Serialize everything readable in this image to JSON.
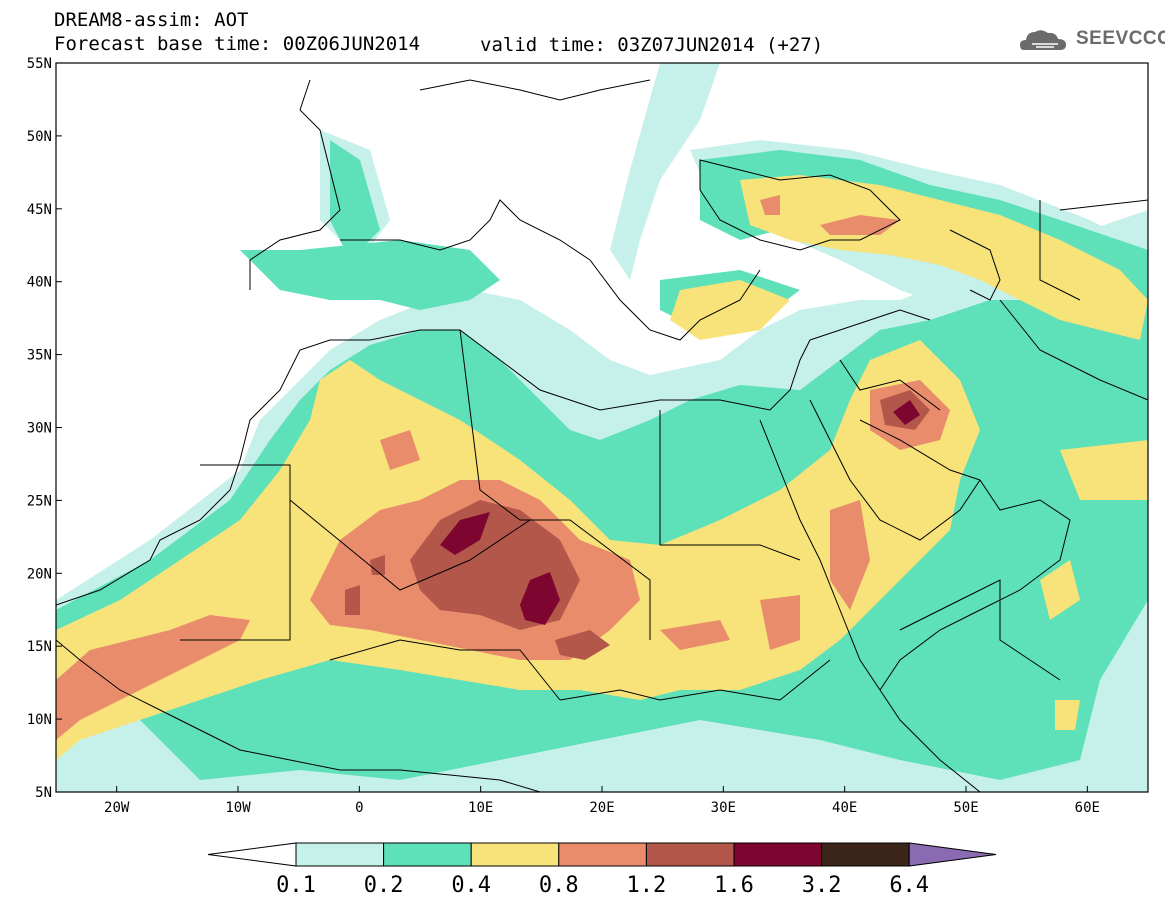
{
  "header": {
    "title": "DREAM8-assim: AOT",
    "base_time": "Forecast base time: 00Z06JUN2014",
    "valid_time": "valid time: 03Z07JUN2014 (+27)",
    "logo_text": "SEEVCCC",
    "logo_icon": "cloud-icon"
  },
  "map": {
    "lon_range": [
      -25,
      65
    ],
    "lat_range": [
      5,
      55
    ],
    "lon_ticks": [
      {
        "value": -20,
        "label": "20W"
      },
      {
        "value": -10,
        "label": "10W"
      },
      {
        "value": 0,
        "label": "0"
      },
      {
        "value": 10,
        "label": "10E"
      },
      {
        "value": 20,
        "label": "20E"
      },
      {
        "value": 30,
        "label": "30E"
      },
      {
        "value": 40,
        "label": "40E"
      },
      {
        "value": 50,
        "label": "50E"
      },
      {
        "value": 60,
        "label": "60E"
      }
    ],
    "lat_ticks": [
      {
        "value": 5,
        "label": "5N"
      },
      {
        "value": 10,
        "label": "10N"
      },
      {
        "value": 15,
        "label": "15N"
      },
      {
        "value": 20,
        "label": "20N"
      },
      {
        "value": 25,
        "label": "25N"
      },
      {
        "value": 30,
        "label": "30N"
      },
      {
        "value": 35,
        "label": "35N"
      },
      {
        "value": 40,
        "label": "40N"
      },
      {
        "value": 45,
        "label": "45N"
      },
      {
        "value": 50,
        "label": "50N"
      },
      {
        "value": 55,
        "label": "55N"
      }
    ]
  },
  "colorbar": {
    "labels": [
      "0.1",
      "0.2",
      "0.4",
      "0.8",
      "1.2",
      "1.6",
      "3.2",
      "6.4"
    ],
    "colors": [
      "#ffffff",
      "#c6f0ea",
      "#5ee0b8",
      "#f7e37a",
      "#e88c6c",
      "#b3574a",
      "#7e0530",
      "#3b2418",
      "#8a6ab0"
    ]
  }
}
